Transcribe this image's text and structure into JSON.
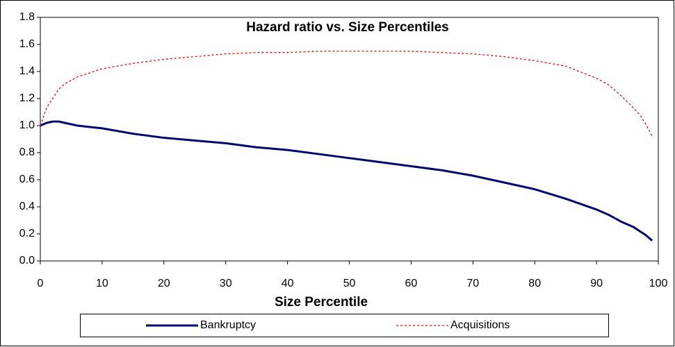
{
  "chart_data": {
    "type": "line",
    "title": "Hazard ratio vs. Size Percentiles",
    "x_label": "Size Percentile",
    "x": [
      0,
      1,
      2,
      3,
      4,
      6,
      8,
      10,
      15,
      20,
      25,
      30,
      35,
      40,
      45,
      50,
      55,
      60,
      65,
      70,
      75,
      80,
      85,
      90,
      92,
      94,
      96,
      97,
      98,
      99
    ],
    "series": [
      {
        "name": "Bankruptcy",
        "color": "#000080",
        "style": "solid",
        "values": [
          1.0,
          1.02,
          1.03,
          1.03,
          1.02,
          1.0,
          0.99,
          0.98,
          0.94,
          0.91,
          0.89,
          0.87,
          0.84,
          0.82,
          0.79,
          0.76,
          0.73,
          0.7,
          0.67,
          0.63,
          0.58,
          0.53,
          0.46,
          0.38,
          0.34,
          0.29,
          0.25,
          0.22,
          0.19,
          0.15
        ]
      },
      {
        "name": "Acquisitions",
        "color": "#ff0000",
        "style": "dotted",
        "values": [
          1.0,
          1.13,
          1.2,
          1.27,
          1.31,
          1.36,
          1.39,
          1.42,
          1.46,
          1.49,
          1.51,
          1.53,
          1.54,
          1.54,
          1.55,
          1.55,
          1.55,
          1.55,
          1.54,
          1.53,
          1.51,
          1.48,
          1.44,
          1.35,
          1.3,
          1.22,
          1.13,
          1.08,
          1.01,
          0.92
        ]
      }
    ],
    "xlim": [
      0,
      100
    ],
    "xticks": [
      0,
      10,
      20,
      30,
      40,
      50,
      60,
      70,
      80,
      90,
      100
    ],
    "ylim": [
      0,
      1.8
    ],
    "yticks": [
      {
        "value": 0,
        "label": "0.0"
      },
      {
        "value": 0.2,
        "label": "0.2"
      },
      {
        "value": 0.4,
        "label": "0.4"
      },
      {
        "value": 0.6,
        "label": "0.6"
      },
      {
        "value": 0.8,
        "label": "0.8"
      },
      {
        "value": 1,
        "label": "1.0"
      },
      {
        "value": 1.2,
        "label": "1.2"
      },
      {
        "value": 1.4,
        "label": "1.4"
      },
      {
        "value": 1.6,
        "label": "1.6"
      },
      {
        "value": 1.8,
        "label": "1.8"
      }
    ],
    "grid": false,
    "legend": "bottom"
  }
}
